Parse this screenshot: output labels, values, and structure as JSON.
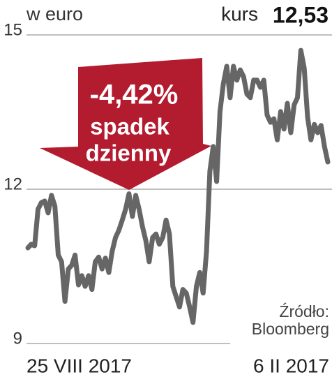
{
  "chart_data": {
    "type": "line",
    "title": "w euro",
    "price_label": "kurs",
    "price_value": "12,53",
    "annotation": {
      "change": "-4,42%",
      "lines": [
        "spadek",
        "dzienny"
      ]
    },
    "source": [
      "Źródło:",
      "Bloomberg"
    ],
    "categories": [
      "25 VIII 2017",
      null,
      null,
      null,
      null,
      null,
      null,
      null,
      null,
      null,
      null,
      null,
      null,
      null,
      null,
      null,
      null,
      null,
      null,
      null,
      null,
      null,
      null,
      null,
      null,
      null,
      null,
      null,
      null,
      null,
      null,
      null,
      null,
      null,
      null,
      null,
      null,
      null,
      null,
      null,
      null,
      null,
      null,
      null,
      null,
      null,
      null,
      null,
      null,
      null,
      null,
      null,
      null,
      null,
      null,
      null,
      null,
      null,
      null,
      null,
      null,
      null,
      null,
      null,
      null,
      null,
      null,
      null,
      null,
      null,
      null,
      null,
      null,
      null,
      null,
      null,
      null,
      null,
      null,
      null,
      null,
      null,
      null,
      null,
      null,
      null,
      null,
      null,
      null,
      "6 II 2017"
    ],
    "values": [
      10.86,
      10.93,
      10.9,
      11.61,
      11.74,
      11.77,
      11.54,
      11.88,
      11.67,
      10.72,
      10.59,
      9.82,
      10.45,
      10.52,
      10.72,
      10.14,
      10.32,
      10.11,
      10.32,
      10.05,
      10.59,
      10.68,
      10.45,
      10.66,
      10.38,
      10.79,
      11.06,
      11.2,
      11.4,
      11.61,
      11.91,
      11.47,
      11.88,
      11.61,
      11.27,
      11.0,
      10.59,
      11.06,
      11.13,
      10.93,
      11.06,
      11.4,
      11.13,
      10.11,
      9.91,
      9.71,
      10.05,
      9.98,
      9.71,
      9.41,
      10.11,
      10.38,
      9.98,
      10.79,
      12.35,
      12.83,
      12.15,
      13.51,
      14.05,
      14.39,
      13.78,
      14.39,
      14.12,
      14.32,
      14.19,
      13.85,
      13.78,
      14.12,
      14.12,
      13.98,
      14.12,
      13.44,
      13.3,
      13.37,
      12.96,
      13.51,
      13.17,
      13.67,
      13.1,
      13.64,
      13.78,
      14.7,
      14.35,
      13.4,
      12.96,
      13.26,
      13.1,
      13.24,
      12.83,
      12.53
    ],
    "color": "#666666",
    "ylim": [
      9,
      15
    ],
    "yticks": [
      9,
      12,
      15
    ],
    "grid": true
  }
}
